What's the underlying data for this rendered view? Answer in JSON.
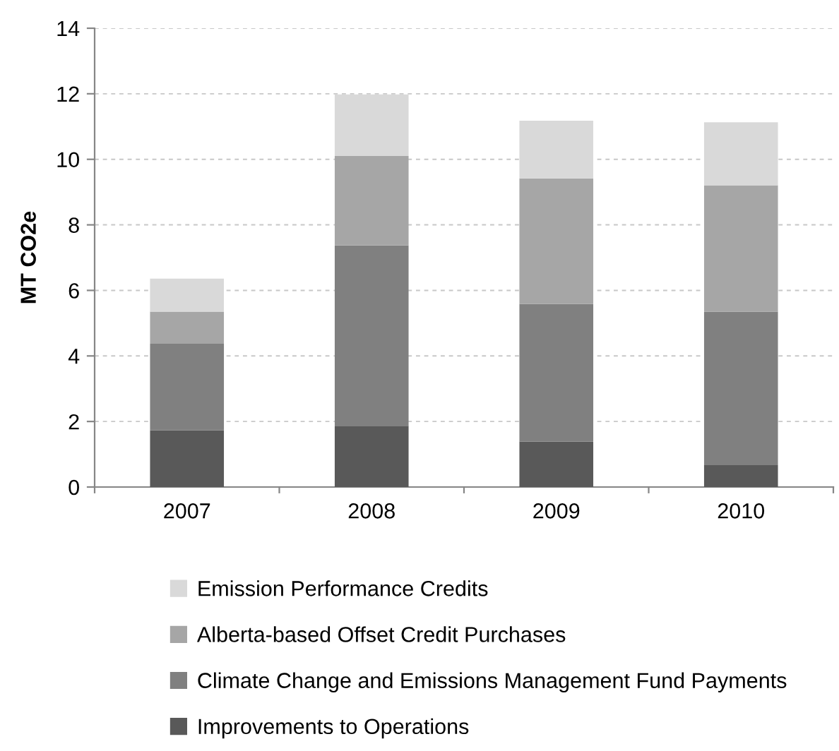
{
  "chart_data": {
    "type": "bar",
    "stacked": true,
    "ylabel": "MT CO2e",
    "categories": [
      "2007",
      "2008",
      "2009",
      "2010"
    ],
    "series": [
      {
        "name": "Improvements to Operations",
        "color": "#595959",
        "values": [
          1.73,
          1.87,
          1.39,
          0.67
        ]
      },
      {
        "name": "Climate Change and Emissions Management Fund Payments",
        "color": "#808080",
        "values": [
          2.64,
          5.5,
          4.2,
          4.68
        ]
      },
      {
        "name": "Alberta-based Offset Credit Purchases",
        "color": "#a6a6a6",
        "values": [
          0.98,
          2.73,
          3.83,
          3.86
        ]
      },
      {
        "name": "Emission Performance Credits",
        "color": "#d9d9d9",
        "values": [
          1.01,
          1.88,
          1.76,
          1.92
        ]
      }
    ],
    "ylim": [
      0,
      14
    ],
    "yticks": [
      0,
      2,
      4,
      6,
      8,
      10,
      12,
      14
    ],
    "grid": "y",
    "legend": "bottom"
  }
}
